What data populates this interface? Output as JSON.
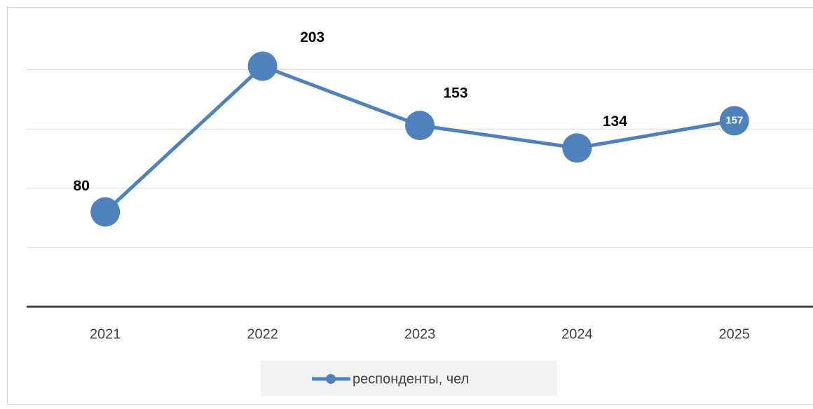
{
  "chart_data": {
    "type": "line",
    "categories": [
      "2021",
      "2022",
      "2023",
      "2024",
      "2025"
    ],
    "series": [
      {
        "name": "респонденты, чел",
        "color": "#4f81bd",
        "values": [
          80,
          203,
          153,
          134,
          157
        ]
      }
    ],
    "ylim": [
      0,
      250
    ],
    "yticks": [
      0,
      50,
      100,
      150,
      200
    ],
    "grid": true,
    "legend": "bottom"
  }
}
